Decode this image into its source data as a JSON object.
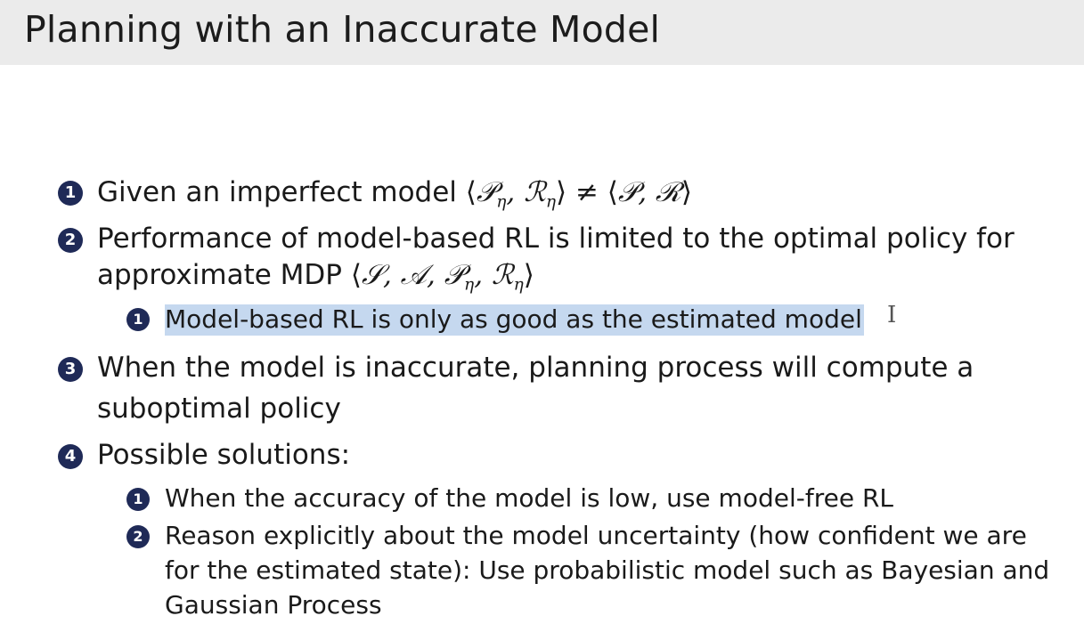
{
  "slide": {
    "title": "Planning with an Inaccurate Model"
  },
  "items": [
    {
      "number": "1",
      "text": "Given an imperfect model",
      "math": "⟨𝒫η, ℛη⟩ ≠ ⟨𝒫, ℛ⟩"
    },
    {
      "number": "2",
      "line1": "Performance of model-based RL is limited to the optimal policy for",
      "line2_text": "approximate MDP",
      "line2_math": "⟨𝒮, 𝒜, 𝒫η, ℛη⟩",
      "subitems": [
        {
          "number": "1",
          "text": "Model-based RL is only as good as the estimated model",
          "highlighted": true
        }
      ]
    },
    {
      "number": "3",
      "line1": "When the model is inaccurate, planning process will compute a",
      "line2": "suboptimal policy"
    },
    {
      "number": "4",
      "text": "Possible solutions:",
      "subitems": [
        {
          "number": "1",
          "text": "When the accuracy of the model is low, use model-free RL"
        },
        {
          "number": "2",
          "line1": "Reason explicitly about the model uncertainty (how confident we are",
          "line2": "for the estimated state): Use probabilistic model such as Bayesian and",
          "line3": "Gaussian Process"
        }
      ]
    }
  ],
  "cursor_glyph": "I",
  "colors": {
    "title_bar_bg": "#ebebeb",
    "bullet_bg": "#1f2a57",
    "highlight_bg": "#c5d8ef",
    "text": "#1a1a1a"
  }
}
